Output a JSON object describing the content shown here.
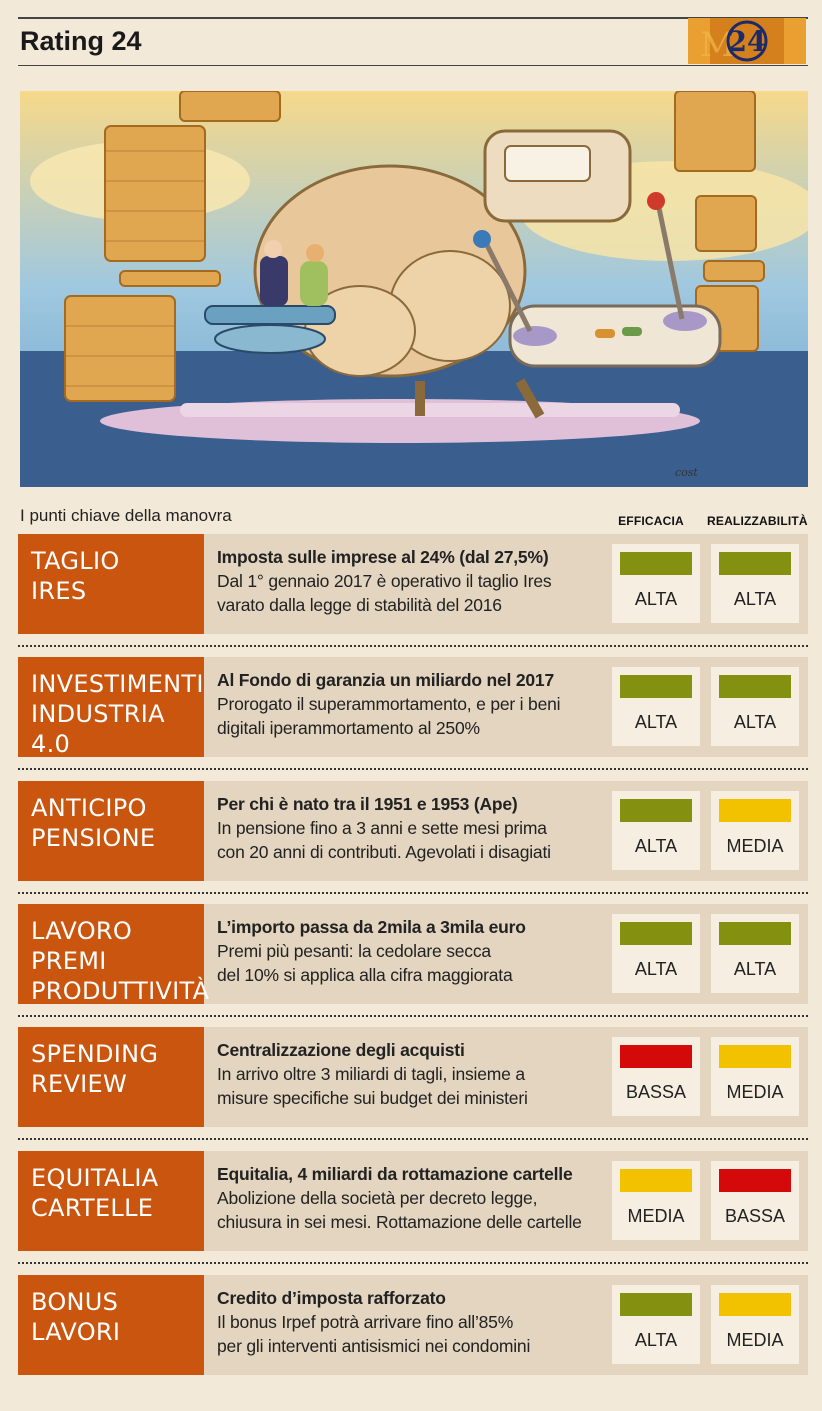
{
  "header": {
    "title": "Rating 24",
    "logo_text": "24"
  },
  "intro": "I punti chiave della manovra",
  "columns": [
    "EFFICACIA",
    "REALIZZABILITÀ"
  ],
  "colors": {
    "alta": "#839010",
    "media": "#f2c200",
    "bassa": "#d40a0a",
    "label_bg": "#c9550f"
  },
  "items": [
    {
      "label": [
        "TAGLIO",
        "IRES"
      ],
      "headline": "Imposta sulle imprese al 24% (dal 27,5%)",
      "body": [
        "Dal 1° gennaio 2017 è operativo il taglio Ires",
        "varato dalla legge di stabilità del 2016"
      ],
      "efficacia": "ALTA",
      "realizzabilita": "ALTA"
    },
    {
      "label": [
        "INVESTIMENTI",
        "INDUSTRIA 4.0"
      ],
      "headline": "Al Fondo di garanzia un miliardo nel 2017",
      "body": [
        "Prorogato il superammortamento, e per i beni",
        "digitali iperammortamento al 250%"
      ],
      "efficacia": "ALTA",
      "realizzabilita": "ALTA"
    },
    {
      "label": [
        "ANTICIPO",
        "PENSIONE"
      ],
      "headline": "Per chi è nato tra il 1951 e 1953 (Ape)",
      "body": [
        "In pensione fino a 3 anni e sette mesi prima",
        "con 20 anni di contributi. Agevolati i disagiati"
      ],
      "efficacia": "ALTA",
      "realizzabilita": "MEDIA"
    },
    {
      "label": [
        "LAVORO PREMI",
        "PRODUTTIVITÀ"
      ],
      "headline": "L’importo passa da 2mila a 3mila euro",
      "body": [
        "Premi più pesanti: la cedolare secca",
        "del 10% si applica alla cifra maggiorata"
      ],
      "efficacia": "ALTA",
      "realizzabilita": "ALTA"
    },
    {
      "label": [
        "SPENDING",
        "REVIEW"
      ],
      "headline": "Centralizzazione degli acquisti",
      "body": [
        "In arrivo oltre 3 miliardi di tagli, insieme a",
        "misure specifiche sui budget dei ministeri"
      ],
      "efficacia": "BASSA",
      "realizzabilita": "MEDIA"
    },
    {
      "label": [
        "EQUITALIA",
        "CARTELLE"
      ],
      "headline": "Equitalia, 4 miliardi da rottamazione cartelle",
      "body": [
        "Abolizione della società per decreto legge,",
        "chiusura in sei mesi. Rottamazione delle cartelle"
      ],
      "efficacia": "MEDIA",
      "realizzabilita": "BASSA"
    },
    {
      "label": [
        "BONUS",
        "LAVORI"
      ],
      "headline": "Credito d’imposta rafforzato",
      "body": [
        "Il bonus Irpef potrà arrivare fino all’85%",
        "per gli interventi antisismici nei condomini"
      ],
      "efficacia": "ALTA",
      "realizzabilita": "MEDIA"
    }
  ]
}
